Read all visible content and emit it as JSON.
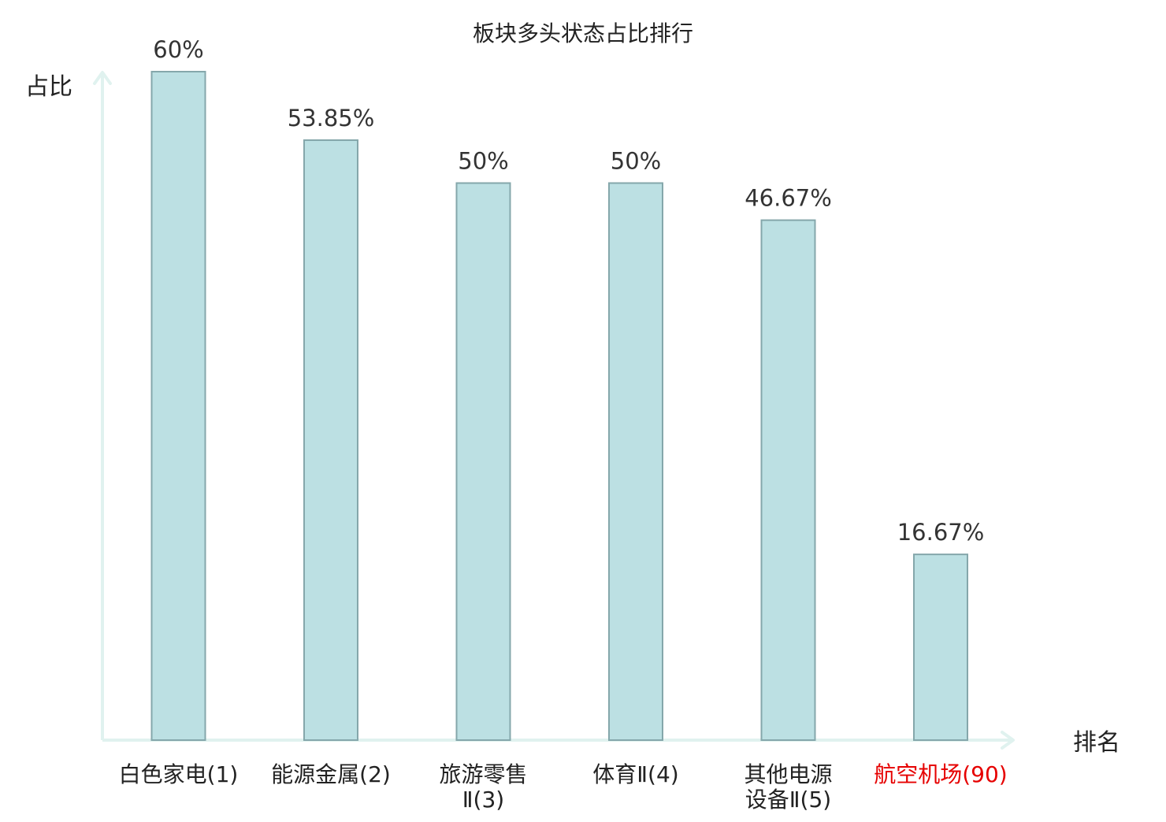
{
  "chart_data": {
    "type": "bar",
    "title": "板块多头状态占比排行",
    "xlabel": "排名",
    "ylabel": "占比",
    "categories": [
      [
        "白色家电(1)"
      ],
      [
        "能源金属(2)"
      ],
      [
        "旅游零售",
        "Ⅱ(3)"
      ],
      [
        "体育Ⅱ(4)"
      ],
      [
        "其他电源",
        "设备Ⅱ(5)"
      ],
      [
        "航空机场(90)"
      ]
    ],
    "values": [
      60,
      53.85,
      50,
      50,
      46.67,
      16.67
    ],
    "value_labels": [
      "60%",
      "53.85%",
      "50%",
      "50%",
      "46.67%",
      "16.67%"
    ],
    "highlighted_category_index": 5,
    "ylim": [
      0,
      60
    ],
    "grid": false,
    "legend": "none"
  },
  "colors": {
    "bar_fill": "#bce0e3",
    "bar_stroke": "#85a7ab",
    "axis": "#e0f2ef",
    "text": "#222222",
    "highlight_text": "#e60000"
  }
}
